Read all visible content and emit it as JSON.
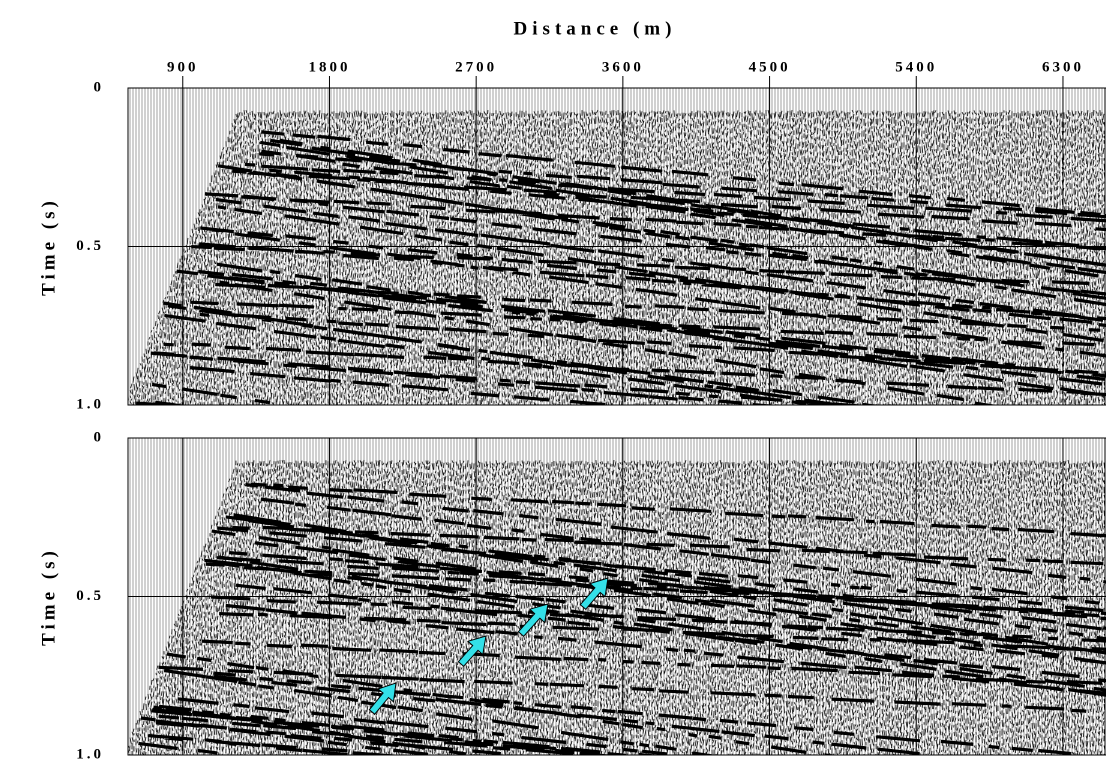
{
  "chart_data": [
    {
      "type": "seismic",
      "title": "Distance (m)",
      "y_label": "Time (s)",
      "xlim": [
        564,
        6564
      ],
      "xticks": [
        900,
        1800,
        2700,
        3600,
        4500,
        5400,
        6300
      ],
      "ylim": [
        0,
        1
      ],
      "yticks": [
        0,
        0.5,
        {
          "value": 1,
          "label": "1.0"
        }
      ],
      "grid": true
    },
    {
      "type": "seismic",
      "y_label": "Time (s)",
      "xlim": [
        564,
        6564
      ],
      "ylim": [
        0,
        1
      ],
      "yticks": [
        0,
        0.5,
        {
          "value": 1,
          "label": "1.0"
        }
      ],
      "grid": true
    }
  ]
}
